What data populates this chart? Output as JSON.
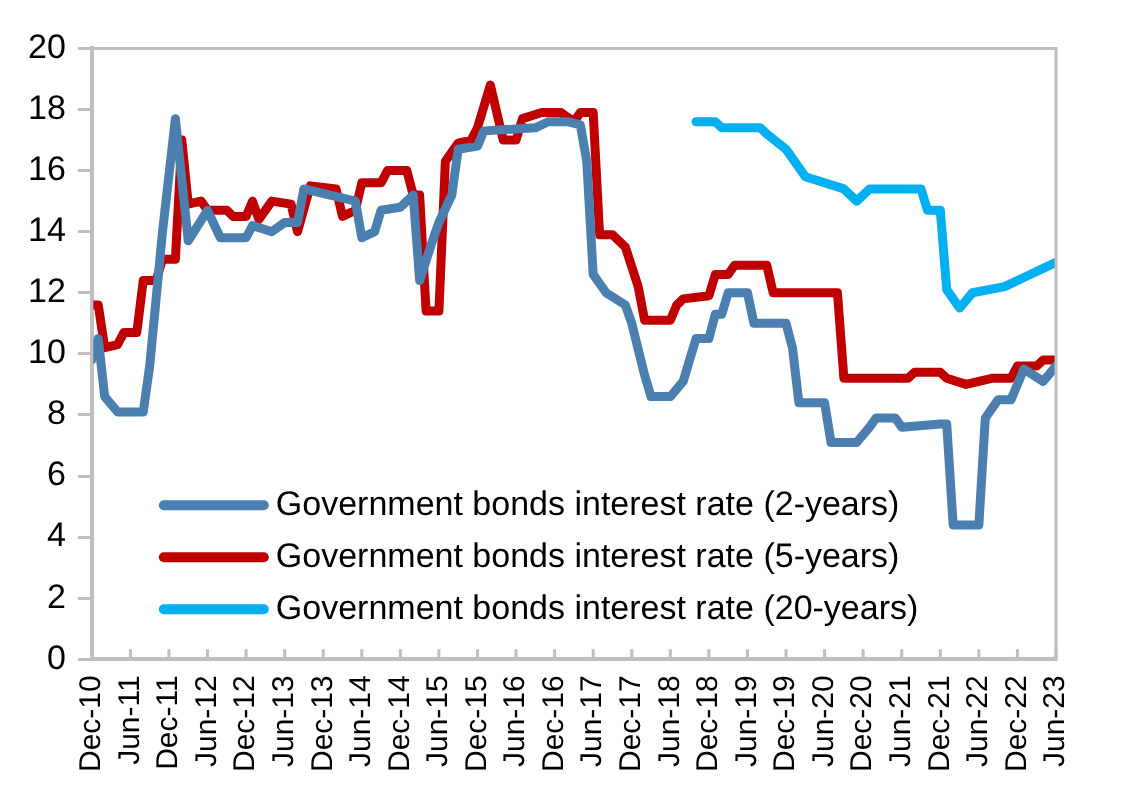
{
  "chart_data": {
    "type": "line",
    "xlim": [
      "2010-12",
      "2023-06"
    ],
    "xticks": [
      {
        "value": "2010-12",
        "label": "Dec-10"
      },
      {
        "value": "2011-06",
        "label": "Jun-11"
      },
      {
        "value": "2011-12",
        "label": "Dec-11"
      },
      {
        "value": "2012-06",
        "label": "Jun-12"
      },
      {
        "value": "2012-12",
        "label": "Dec-12"
      },
      {
        "value": "2013-06",
        "label": "Jun-13"
      },
      {
        "value": "2013-12",
        "label": "Dec-13"
      },
      {
        "value": "2014-06",
        "label": "Jun-14"
      },
      {
        "value": "2014-12",
        "label": "Dec-14"
      },
      {
        "value": "2015-06",
        "label": "Jun-15"
      },
      {
        "value": "2015-12",
        "label": "Dec-15"
      },
      {
        "value": "2016-06",
        "label": "Jun-16"
      },
      {
        "value": "2016-12",
        "label": "Dec-16"
      },
      {
        "value": "2017-06",
        "label": "Jun-17"
      },
      {
        "value": "2017-12",
        "label": "Dec-17"
      },
      {
        "value": "2018-06",
        "label": "Jun-18"
      },
      {
        "value": "2018-12",
        "label": "Dec-18"
      },
      {
        "value": "2019-06",
        "label": "Jun-19"
      },
      {
        "value": "2019-12",
        "label": "Dec-19"
      },
      {
        "value": "2020-06",
        "label": "Jun-20"
      },
      {
        "value": "2020-12",
        "label": "Dec-20"
      },
      {
        "value": "2021-06",
        "label": "Jun-21"
      },
      {
        "value": "2021-12",
        "label": "Dec-21"
      },
      {
        "value": "2022-06",
        "label": "Jun-22"
      },
      {
        "value": "2022-12",
        "label": "Dec-22"
      },
      {
        "value": "2023-06",
        "label": "Jun-23"
      }
    ],
    "ylim": [
      0,
      20
    ],
    "yticks": [
      0,
      2,
      4,
      6,
      8,
      10,
      12,
      14,
      16,
      18,
      20
    ],
    "grid": false,
    "legend": "bottom left",
    "marker": "none",
    "line_style": "solid",
    "series": [
      {
        "name": "Government bonds interest rate (2-years)",
        "color": "#4a7fb0",
        "x": [
          "2010-12",
          "2011-01",
          "2011-02",
          "2011-04",
          "2011-08",
          "2011-09",
          "2011-11",
          "2012-01",
          "2012-03",
          "2012-06",
          "2012-08",
          "2012-12",
          "2013-01",
          "2013-04",
          "2013-06",
          "2013-08",
          "2013-09",
          "2014-05",
          "2014-06",
          "2014-08",
          "2014-09",
          "2014-12",
          "2015-02",
          "2015-03",
          "2015-05",
          "2015-06",
          "2015-08",
          "2015-09",
          "2015-12",
          "2016-01",
          "2016-09",
          "2016-11",
          "2017-02",
          "2017-04",
          "2017-05",
          "2017-06",
          "2017-08",
          "2017-11",
          "2017-12",
          "2018-02",
          "2018-03",
          "2018-06",
          "2018-08",
          "2018-10",
          "2018-12",
          "2019-01",
          "2019-02",
          "2019-03",
          "2019-06",
          "2019-07",
          "2019-12",
          "2020-01",
          "2020-02",
          "2020-06",
          "2020-07",
          "2020-11",
          "2021-01",
          "2021-02",
          "2021-05",
          "2021-06",
          "2021-12",
          "2022-01",
          "2022-02",
          "2022-06",
          "2022-07",
          "2022-09",
          "2022-11",
          "2023-01",
          "2023-04",
          "2023-06"
        ],
        "values": [
          9.8,
          10.5,
          8.6,
          8.1,
          8.1,
          9.6,
          14.0,
          17.7,
          13.7,
          14.7,
          13.8,
          13.8,
          14.2,
          14.0,
          14.3,
          14.3,
          15.4,
          15.0,
          13.8,
          14.0,
          14.7,
          14.8,
          15.2,
          12.4,
          13.7,
          14.3,
          15.2,
          16.7,
          16.8,
          17.3,
          17.4,
          17.6,
          17.6,
          17.5,
          16.3,
          12.6,
          12.0,
          11.6,
          11.0,
          9.3,
          8.6,
          8.6,
          9.1,
          10.5,
          10.5,
          11.3,
          11.3,
          12.0,
          12.0,
          11.0,
          11.0,
          10.2,
          8.4,
          8.4,
          7.1,
          7.1,
          7.6,
          7.9,
          7.9,
          7.6,
          7.7,
          7.7,
          4.4,
          4.4,
          7.9,
          8.5,
          8.5,
          9.5,
          9.1,
          9.6
        ]
      },
      {
        "name": "Government bonds interest rate (5-years)",
        "color": "#c00000",
        "x": [
          "2010-12",
          "2011-01",
          "2011-02",
          "2011-04",
          "2011-05",
          "2011-07",
          "2011-08",
          "2011-10",
          "2011-11",
          "2012-01",
          "2012-02",
          "2012-03",
          "2012-05",
          "2012-06",
          "2012-09",
          "2012-10",
          "2012-12",
          "2013-01",
          "2013-02",
          "2013-04",
          "2013-07",
          "2013-08",
          "2013-10",
          "2014-02",
          "2014-03",
          "2014-05",
          "2014-06",
          "2014-09",
          "2014-10",
          "2015-01",
          "2015-02",
          "2015-03",
          "2015-04",
          "2015-06",
          "2015-07",
          "2015-09",
          "2015-11",
          "2015-12",
          "2016-02",
          "2016-04",
          "2016-06",
          "2016-07",
          "2016-10",
          "2017-01",
          "2017-03",
          "2017-04",
          "2017-06",
          "2017-07",
          "2017-09",
          "2017-11",
          "2018-01",
          "2018-02",
          "2018-06",
          "2018-07",
          "2018-08",
          "2018-12",
          "2019-01",
          "2019-03",
          "2019-04",
          "2019-09",
          "2019-10",
          "2020-08",
          "2020-09",
          "2021-07",
          "2021-08",
          "2021-12",
          "2022-01",
          "2022-04",
          "2022-08",
          "2022-11",
          "2022-12",
          "2023-03",
          "2023-04",
          "2023-06"
        ],
        "values": [
          11.6,
          11.6,
          10.2,
          10.3,
          10.7,
          10.7,
          12.4,
          12.4,
          13.1,
          13.1,
          17.0,
          14.9,
          15.0,
          14.7,
          14.7,
          14.5,
          14.5,
          15.0,
          14.4,
          15.0,
          14.9,
          14.0,
          15.5,
          15.4,
          14.5,
          14.7,
          15.6,
          15.6,
          16.0,
          16.0,
          15.2,
          15.2,
          11.4,
          11.4,
          16.3,
          16.9,
          17.0,
          17.4,
          18.8,
          17.0,
          17.0,
          17.7,
          17.9,
          17.9,
          17.6,
          17.9,
          17.9,
          13.9,
          13.9,
          13.5,
          12.2,
          11.1,
          11.1,
          11.6,
          11.8,
          11.9,
          12.6,
          12.6,
          12.9,
          12.9,
          12.0,
          12.0,
          9.2,
          9.2,
          9.4,
          9.4,
          9.2,
          9.0,
          9.2,
          9.2,
          9.6,
          9.6,
          9.8,
          9.8
        ]
      },
      {
        "name": "Government bonds interest rate (20-years)",
        "color": "#00b0f0",
        "x": [
          "2018-10",
          "2019-01",
          "2019-02",
          "2019-08",
          "2019-09",
          "2019-12",
          "2020-01",
          "2020-03",
          "2020-06",
          "2020-09",
          "2020-11",
          "2021-01",
          "2021-09",
          "2021-10",
          "2021-12",
          "2022-01",
          "2022-03",
          "2022-05",
          "2022-10",
          "2023-01",
          "2023-04",
          "2023-06"
        ],
        "values": [
          17.6,
          17.6,
          17.4,
          17.4,
          17.2,
          16.7,
          16.4,
          15.8,
          15.6,
          15.4,
          15.0,
          15.4,
          15.4,
          14.7,
          14.7,
          12.1,
          11.5,
          12.0,
          12.2,
          12.5,
          12.8,
          13.0
        ]
      }
    ]
  }
}
